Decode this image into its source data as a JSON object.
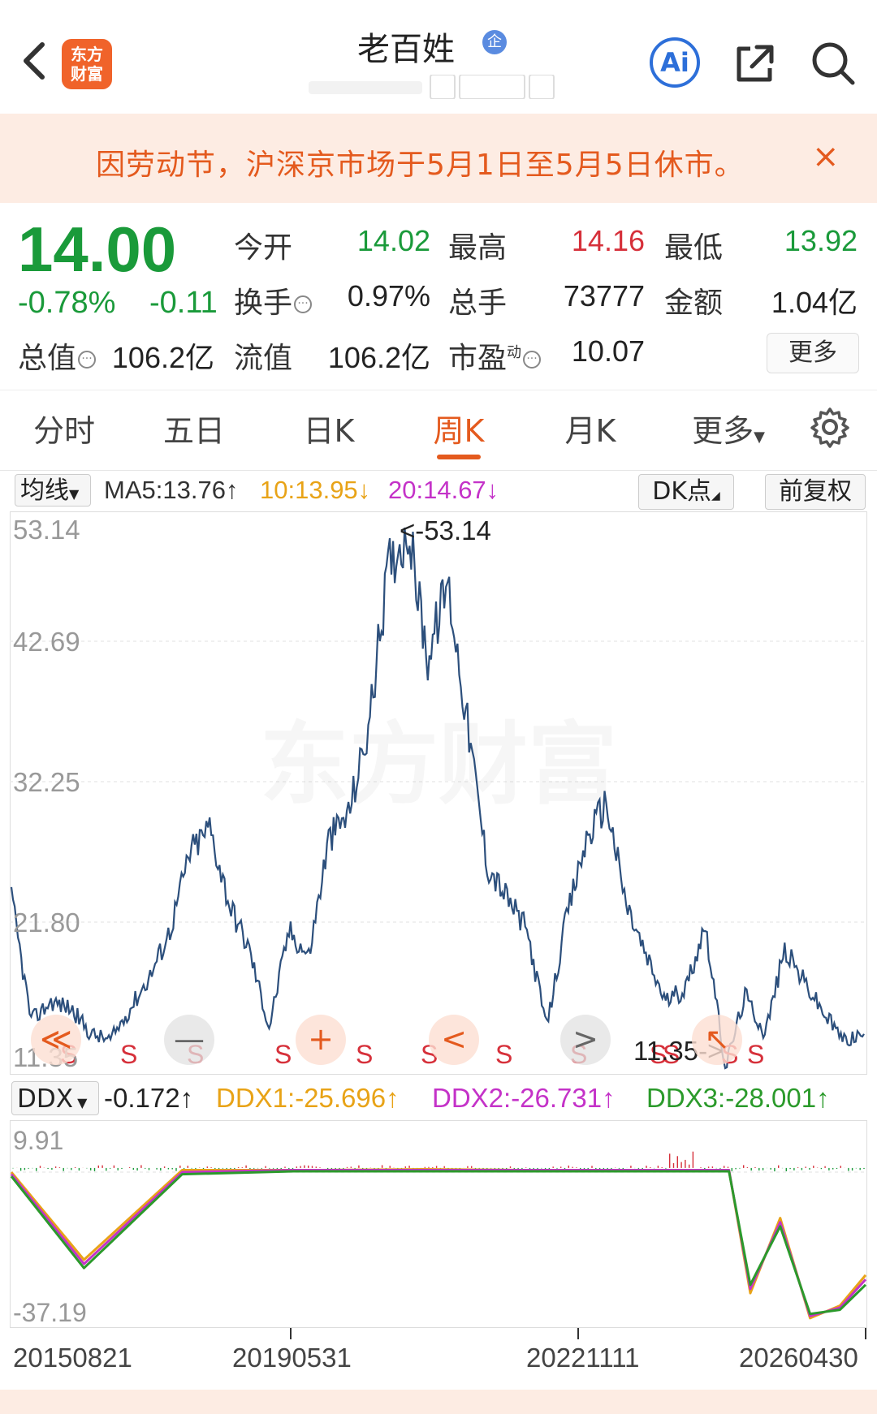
{
  "header": {
    "back_icon": "chevron-left-icon",
    "logo_text_top": "东方",
    "logo_text_bottom": "财富",
    "stock_name": "老百姓",
    "badge": "企",
    "ai_label": "Ai"
  },
  "notice": {
    "text": "因劳动节，沪深京市场于5月1日至5月5日休市。",
    "close": "×"
  },
  "quote": {
    "price": "14.00",
    "change_pct": "-0.78%",
    "change_amt": "-0.11",
    "open_label": "今开",
    "open_value": "14.02",
    "high_label": "最高",
    "high_value": "14.16",
    "low_label": "最低",
    "low_value": "13.92",
    "turnover_label": "换手",
    "turnover_value": "0.97%",
    "volume_label": "总手",
    "volume_value": "73777",
    "amount_label": "金额",
    "amount_value": "1.04亿",
    "mcap_label": "总值",
    "mcap_value": "106.2亿",
    "float_label": "流值",
    "float_value": "106.2亿",
    "pe_label": "市盈",
    "pe_sup": "动",
    "pe_value": "10.07",
    "more_label": "更多",
    "colors": {
      "down": "#1a9a3a",
      "up": "#d6303a"
    }
  },
  "tabs": [
    {
      "label": "分时"
    },
    {
      "label": "五日"
    },
    {
      "label": "日K"
    },
    {
      "label": "周K"
    },
    {
      "label": "月K"
    },
    {
      "label": "更多"
    }
  ],
  "active_tab": "周K",
  "ma": {
    "selector": "均线",
    "ma5": "MA5:13.76",
    "ma5_arrow": "↑",
    "ma10": "10:13.95",
    "ma10_arrow": "↓",
    "ma20": "20:14.67",
    "ma20_arrow": "↓",
    "dk_label": "DK点",
    "fq_label": "前复权",
    "colors": {
      "ma5": "#333333",
      "ma10": "#e8a317",
      "ma20": "#c432c8"
    }
  },
  "kchart": {
    "y_ticks": [
      "53.14",
      "42.69",
      "32.25",
      "21.80",
      "11.35"
    ],
    "max_annotation": "<-53.14",
    "min_annotation": "11.35->",
    "sell_marker": "S",
    "watermark": "东方财富",
    "controls": [
      {
        "icon": "double-chevron-left-icon",
        "glyph": "≪"
      },
      {
        "icon": "minus-icon",
        "glyph": "—"
      },
      {
        "icon": "plus-icon",
        "glyph": "+"
      },
      {
        "icon": "chevron-left-icon",
        "glyph": "<"
      },
      {
        "icon": "chevron-right-icon",
        "glyph": ">"
      },
      {
        "icon": "expand-icon",
        "glyph": "↖"
      }
    ],
    "line_color": "#2c4f7c"
  },
  "ddx": {
    "selector": "DDX",
    "value": "-0.172",
    "value_arrow": "↑",
    "ddx1": "DDX1:-25.696",
    "ddx1_arrow": "↑",
    "ddx2": "DDX2:-26.731",
    "ddx2_arrow": "↑",
    "ddx3": "DDX3:-28.001",
    "ddx3_arrow": "↑",
    "y_top": "9.91",
    "y_bottom": "-37.19",
    "colors": {
      "ddx1": "#e8a317",
      "ddx2": "#c432c8",
      "ddx3": "#2b9a2b"
    }
  },
  "x_labels": [
    "20150821",
    "20190531",
    "20221111",
    "20260430"
  ],
  "chart_data": [
    {
      "type": "line",
      "title": "",
      "x": [
        "2015-08",
        "2015-11",
        "2016-02",
        "2016-05",
        "2016-08",
        "2016-11",
        "2017-02",
        "2017-05",
        "2017-08",
        "2017-11",
        "2018-02",
        "2018-05",
        "2018-08",
        "2018-11",
        "2019-02",
        "2019-05",
        "2019-08",
        "2019-11",
        "2020-02",
        "2020-05",
        "2020-08",
        "2020-11",
        "2021-02",
        "2021-05",
        "2021-08",
        "2021-11",
        "2022-02",
        "2022-05",
        "2022-08",
        "2022-11",
        "2023-02",
        "2023-05",
        "2023-08",
        "2023-11",
        "2024-02",
        "2024-05",
        "2024-08",
        "2024-11",
        "2025-02",
        "2025-05",
        "2025-08",
        "2025-11",
        "2026-02",
        "2026-04"
      ],
      "series": [
        {
          "values": [
            24.5,
            15.0,
            16.5,
            16.0,
            14.0,
            13.5,
            16.0,
            18.5,
            22.0,
            28.0,
            30.0,
            24.0,
            20.5,
            14.5,
            22.0,
            20.0,
            29.0,
            31.0,
            37.5,
            50.0,
            53.14,
            43.0,
            49.0,
            38.0,
            27.0,
            24.5,
            22.0,
            14.5,
            23.0,
            29.0,
            32.0,
            24.0,
            20.0,
            16.5,
            17.5,
            22.5,
            11.35,
            17.0,
            14.0,
            20.5,
            18.0,
            15.5,
            13.5,
            14.0
          ]
        }
      ],
      "ylim": [
        11.35,
        53.14
      ],
      "y_ticks": [
        53.14,
        42.69,
        32.25,
        21.8,
        11.35
      ],
      "annotations": [
        "<-53.14",
        "11.35->"
      ]
    },
    {
      "type": "line",
      "title": "",
      "x": [
        "2015-08",
        "2016-06",
        "2017-08",
        "2018-06",
        "2019-05",
        "2020-06",
        "2021-06",
        "2022-06",
        "2023-06",
        "2024-06",
        "2025-01",
        "2025-05",
        "2025-09",
        "2026-01",
        "2026-04"
      ],
      "series": [
        {
          "name": "DDX1",
          "values": [
            -1.0,
            -22.0,
            -0.5,
            -0.5,
            -0.5,
            -0.3,
            -0.5,
            -0.5,
            -0.5,
            -0.5,
            -30.0,
            -12.0,
            -36.0,
            -33.0,
            -25.696
          ]
        },
        {
          "name": "DDX2",
          "values": [
            -1.5,
            -23.0,
            -1.0,
            -0.5,
            -0.5,
            -0.5,
            -0.5,
            -0.5,
            -0.5,
            -0.5,
            -29.0,
            -13.0,
            -35.5,
            -33.5,
            -26.731
          ]
        },
        {
          "name": "DDX3",
          "values": [
            -2.0,
            -24.0,
            -1.5,
            -0.8,
            -0.8,
            -0.8,
            -0.8,
            -0.8,
            -0.8,
            -0.8,
            -28.0,
            -14.0,
            -35.0,
            -34.0,
            -28.001
          ]
        }
      ],
      "ylim": [
        -37.19,
        9.91
      ]
    }
  ]
}
